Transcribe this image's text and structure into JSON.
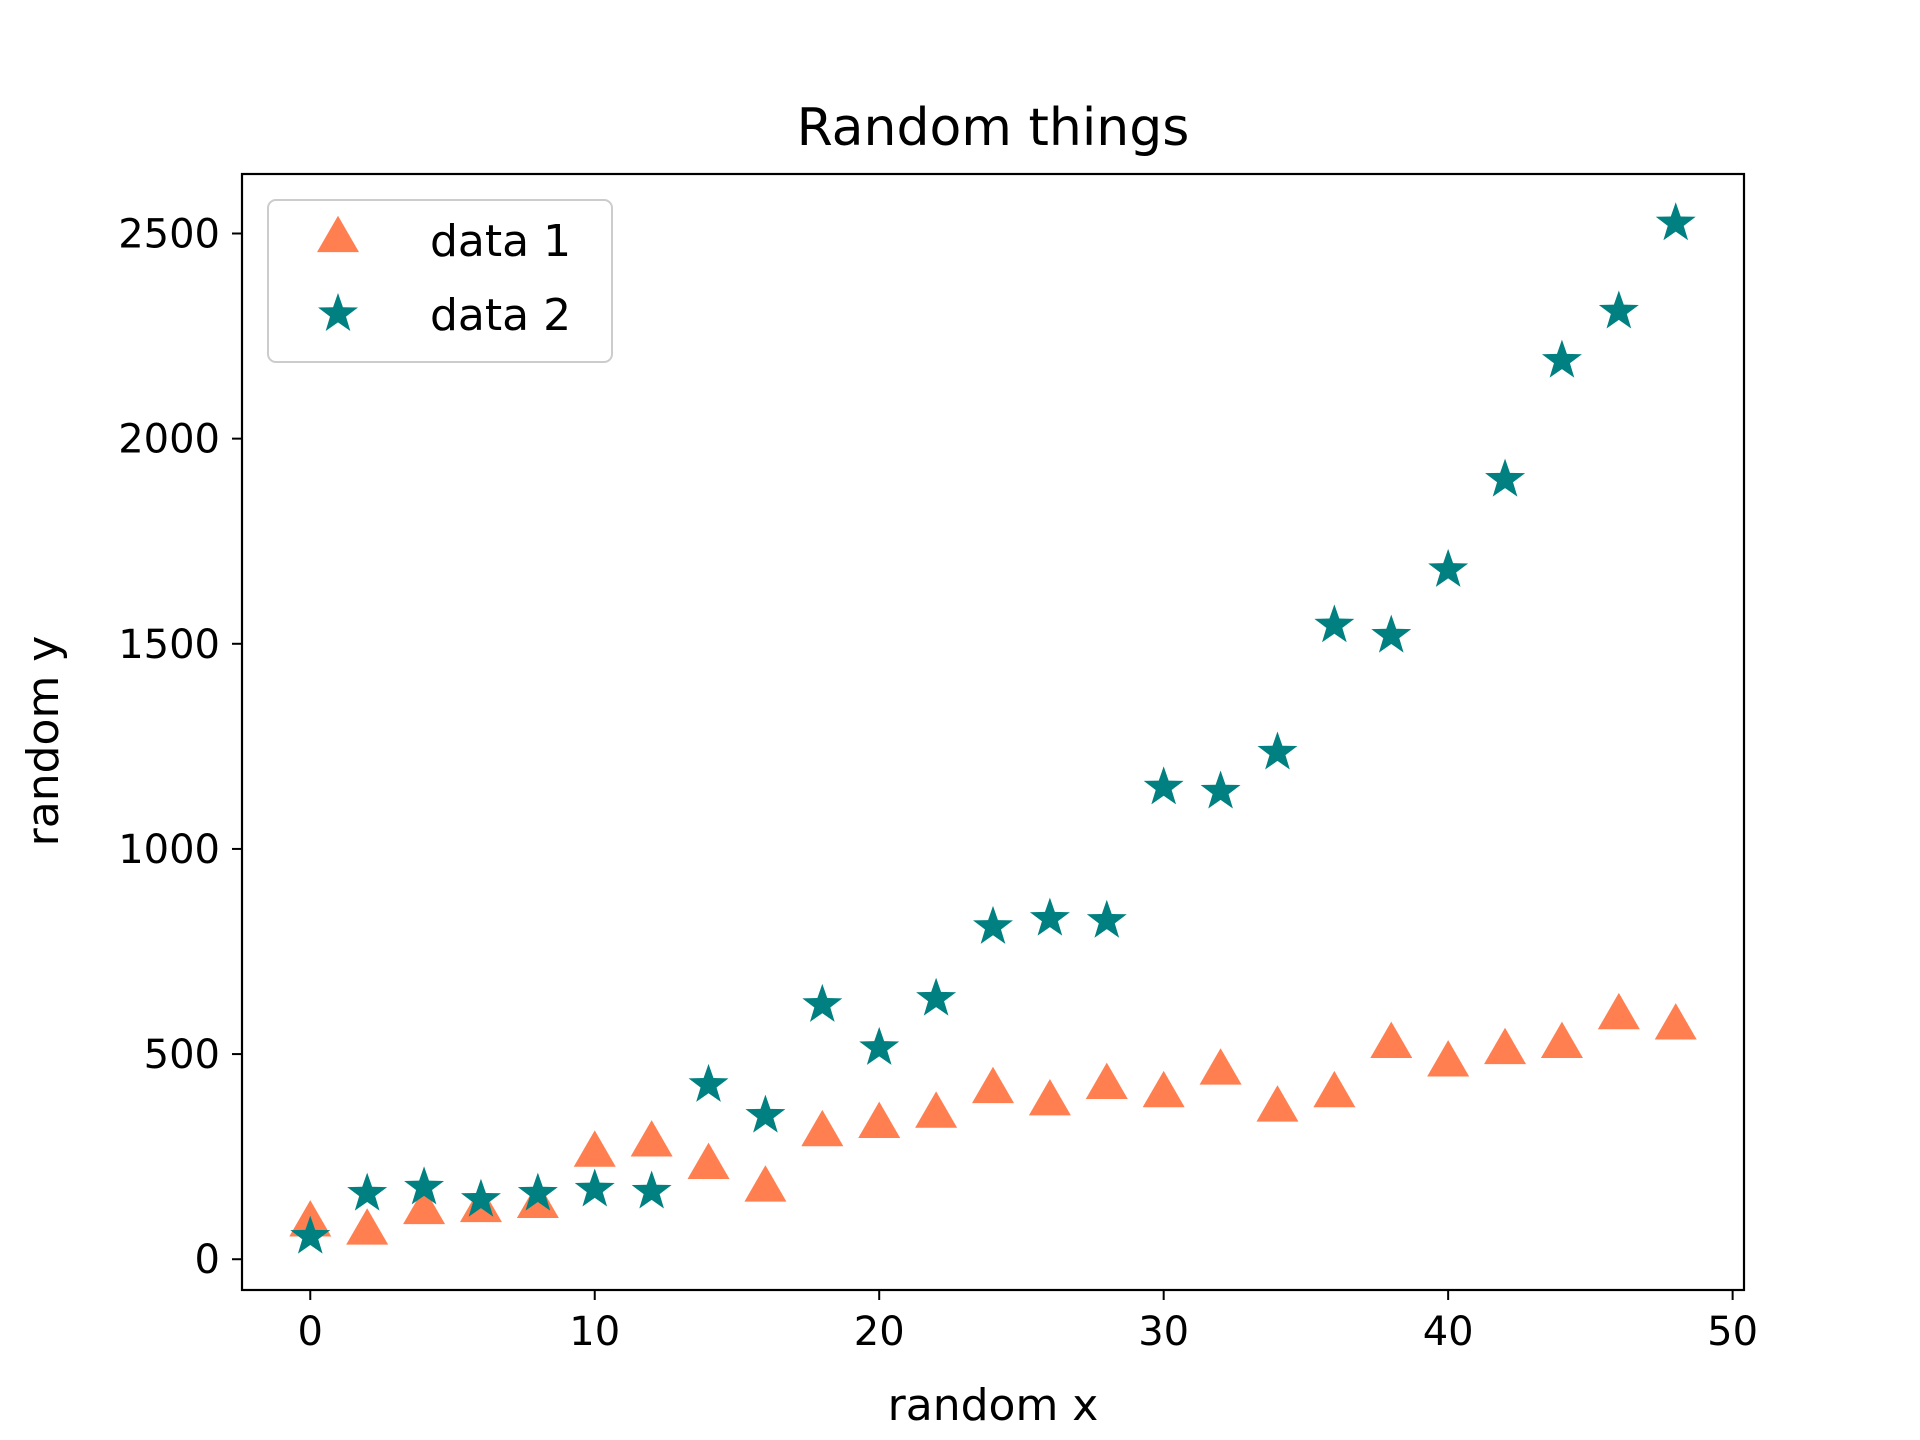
{
  "chart_data": {
    "type": "scatter",
    "title": "Random things",
    "xlabel": "random x",
    "ylabel": "random y",
    "xlim": [
      -2.4,
      50.4
    ],
    "ylim": [
      -75,
      2645
    ],
    "xticks": [
      0,
      10,
      20,
      30,
      40,
      50
    ],
    "yticks": [
      0,
      500,
      1000,
      1500,
      2000,
      2500
    ],
    "grid": false,
    "legend_position": "top-left",
    "x": [
      0,
      2,
      4,
      6,
      8,
      10,
      12,
      14,
      16,
      18,
      20,
      22,
      24,
      26,
      28,
      30,
      32,
      34,
      36,
      38,
      40,
      42,
      44,
      46,
      48
    ],
    "series": [
      {
        "name": "data 1",
        "marker": "triangle",
        "color": "#ff7f50",
        "values": [
          85,
          65,
          115,
          120,
          130,
          255,
          280,
          225,
          170,
          305,
          325,
          350,
          410,
          380,
          420,
          400,
          455,
          365,
          400,
          520,
          475,
          505,
          520,
          590,
          565
        ]
      },
      {
        "name": "data 2",
        "marker": "star",
        "color": "#008080",
        "values": [
          55,
          160,
          175,
          145,
          160,
          170,
          165,
          425,
          350,
          620,
          515,
          635,
          810,
          830,
          825,
          1150,
          1140,
          1235,
          1545,
          1520,
          1680,
          1900,
          2190,
          2310,
          2525
        ]
      }
    ]
  }
}
